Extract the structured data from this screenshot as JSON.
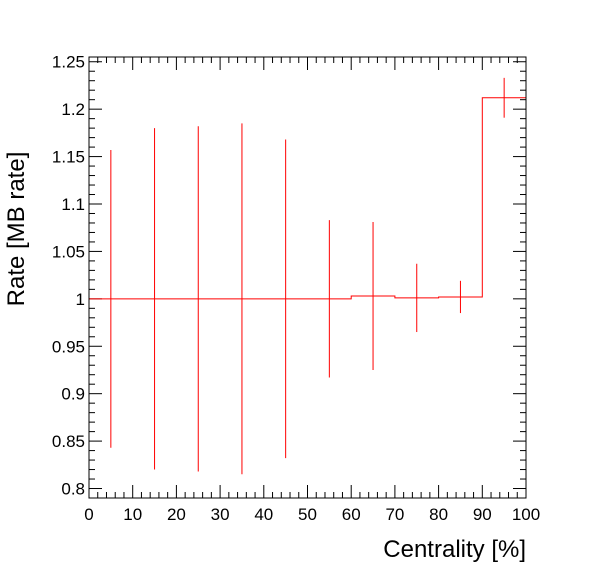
{
  "chart_data": {
    "type": "histogram",
    "xlabel": "Centrality [%]",
    "ylabel": "Rate [MB rate]",
    "xlim": [
      0,
      100
    ],
    "ylim": [
      0.79,
      1.255
    ],
    "x_ticks": [
      0,
      10,
      20,
      30,
      40,
      50,
      60,
      70,
      80,
      90,
      100
    ],
    "x_tick_labels": [
      "0",
      "10",
      "20",
      "30",
      "40",
      "50",
      "60",
      "70",
      "80",
      "90",
      "100"
    ],
    "y_ticks": [
      0.8,
      0.85,
      0.9,
      0.95,
      1.0,
      1.05,
      1.1,
      1.15,
      1.2,
      1.25
    ],
    "y_tick_labels": [
      "0.8",
      "0.85",
      "0.9",
      "0.95",
      "1",
      "1.05",
      "1.1",
      "1.15",
      "1.2",
      "1.25"
    ],
    "color": "#ff0000",
    "grid": false,
    "legend": "none",
    "bins": [
      {
        "x": 5,
        "low": 0,
        "high": 10,
        "value": 1.0,
        "error": 0.157
      },
      {
        "x": 15,
        "low": 10,
        "high": 20,
        "value": 1.0,
        "error": 0.18
      },
      {
        "x": 25,
        "low": 20,
        "high": 30,
        "value": 1.0,
        "error": 0.182
      },
      {
        "x": 35,
        "low": 30,
        "high": 40,
        "value": 1.0,
        "error": 0.185
      },
      {
        "x": 45,
        "low": 40,
        "high": 50,
        "value": 1.0,
        "error": 0.168
      },
      {
        "x": 55,
        "low": 50,
        "high": 60,
        "value": 1.0,
        "error": 0.083
      },
      {
        "x": 65,
        "low": 60,
        "high": 70,
        "value": 1.003,
        "error": 0.078
      },
      {
        "x": 75,
        "low": 70,
        "high": 80,
        "value": 1.001,
        "error": 0.036
      },
      {
        "x": 85,
        "low": 80,
        "high": 90,
        "value": 1.002,
        "error": 0.017
      },
      {
        "x": 95,
        "low": 90,
        "high": 100,
        "value": 1.212,
        "error": 0.021
      }
    ]
  }
}
